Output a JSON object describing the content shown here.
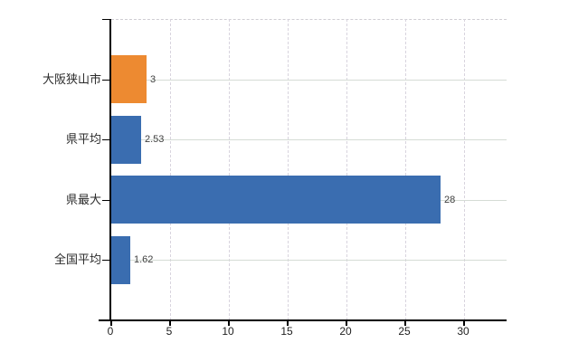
{
  "chart_data": {
    "type": "bar",
    "orientation": "horizontal",
    "title": "",
    "categories": [
      "大阪狭山市",
      "県平均",
      "県最大",
      "全国平均"
    ],
    "values": [
      3,
      2.53,
      28,
      1.62
    ],
    "value_labels": [
      "3",
      "2.53",
      "28",
      "1.62"
    ],
    "bar_colors": [
      "#ED8A31",
      "#3A6DB0",
      "#3A6DB0",
      "#3A6DB0"
    ],
    "highlight_category": "大阪狭山市",
    "x_tick_labels": [
      "0",
      "5",
      "10",
      "15",
      "20",
      "25",
      "30"
    ],
    "x_tick_values": [
      0,
      5,
      10,
      15,
      20,
      25,
      30
    ],
    "xlim": [
      0,
      33.6
    ],
    "xlabel": "",
    "ylabel": "",
    "legend": "none",
    "grid": {
      "vertical": "dashed",
      "horizontal": "solid"
    }
  },
  "colors": {
    "background": "#ffffff",
    "bar_highlight": "#ED8A31",
    "bar_default": "#3A6DB0",
    "axis": "#000000",
    "grid_horizontal": "#d5dcd5",
    "grid_vertical": "#d8d4de",
    "plot_top_border": "#cfcdd3",
    "label_text": "#2b2b2b",
    "value_text": "#3f3f3f"
  }
}
